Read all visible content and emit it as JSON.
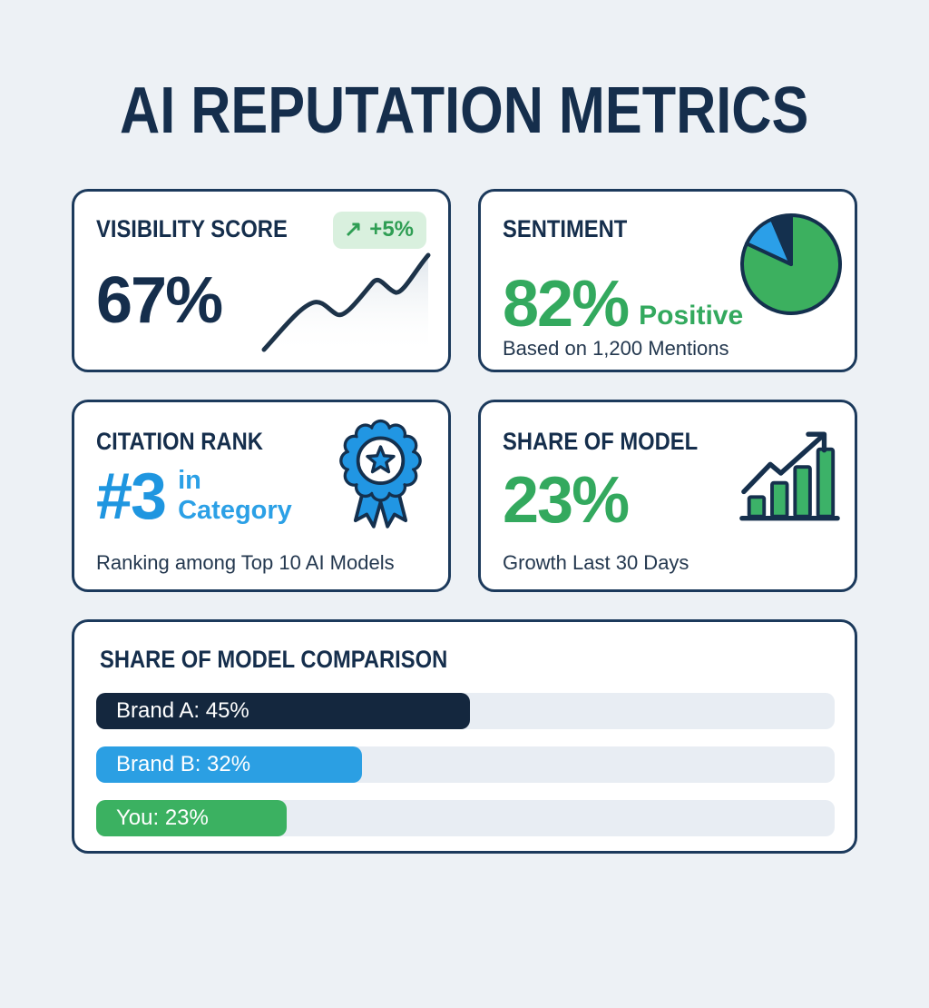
{
  "page": {
    "title": "AI REPUTATION METRICS"
  },
  "icons": {
    "trend_up": "↗"
  },
  "colors": {
    "page_bg": "#edf1f5",
    "card_bg": "#ffffff",
    "card_border": "#1c3a5c",
    "navy": "#152e4c",
    "green": "#33a95e",
    "blue": "#1f96e0",
    "badge_bg": "#d9f0de",
    "badge_text": "#2f9e54",
    "bar_track": "#e8edf3"
  },
  "cards": {
    "visibility": {
      "title": "VISIBILITY SCORE",
      "value": "67%",
      "trend_label": "+5%"
    },
    "sentiment": {
      "title": "SENTIMENT",
      "value": "82%",
      "value_suffix": "Positive",
      "subtitle": "Based on 1,200 Mentions"
    },
    "citation": {
      "title": "CITATION RANK",
      "value": "#3",
      "suffix_line1": "in",
      "suffix_line2": "Category",
      "subtitle": "Ranking among Top 10 AI Models"
    },
    "share": {
      "title": "SHARE OF MODEL",
      "value": "23%",
      "subtitle": "Growth Last 30 Days"
    }
  },
  "comparison": {
    "title": "SHARE OF MODEL COMPARISON",
    "chart_data": {
      "type": "bar",
      "orientation": "horizontal",
      "categories": [
        "Brand A",
        "Brand B",
        "You"
      ],
      "values": [
        45,
        32,
        23
      ],
      "bar_labels": [
        "Brand A: 45%",
        "Brand B: 32%",
        "You: 23%"
      ],
      "colors": [
        "#14273e",
        "#2b9fe3",
        "#3bb161"
      ],
      "track_color": "#e8edf3",
      "xlim": [
        0,
        89
      ],
      "grid": false,
      "legend": false
    }
  },
  "chart_data": [
    {
      "type": "line",
      "title": "Visibility score sparkline (decorative, no axes)",
      "x": [
        0,
        1,
        2,
        3,
        4,
        5
      ],
      "values": [
        10,
        45,
        36,
        68,
        58,
        95
      ],
      "line_color": "#1d3349",
      "area_fill": "light gray gradient"
    },
    {
      "type": "pie",
      "title": "Sentiment split (82% Positive, unlabeled blue and navy slices)",
      "labels": [
        "Positive",
        "other-blue",
        "other-navy"
      ],
      "values": [
        82,
        12,
        6
      ],
      "colors": [
        "#3cb05f",
        "#2b9fe8",
        "#14304e"
      ],
      "start_angle_deg_from_12_oclock": 0
    },
    {
      "type": "bar",
      "title": "Share-of-model growth icon bars (decorative)",
      "values": [
        22,
        38,
        56,
        76
      ],
      "bar_color": "#3cb268"
    },
    {
      "type": "bar",
      "orientation": "horizontal",
      "title": "SHARE OF MODEL COMPARISON",
      "categories": [
        "Brand A",
        "Brand B",
        "You"
      ],
      "values": [
        45,
        32,
        23
      ],
      "colors": [
        "#14273e",
        "#2b9fe3",
        "#3bb161"
      ],
      "xlim": [
        0,
        89
      ]
    }
  ]
}
